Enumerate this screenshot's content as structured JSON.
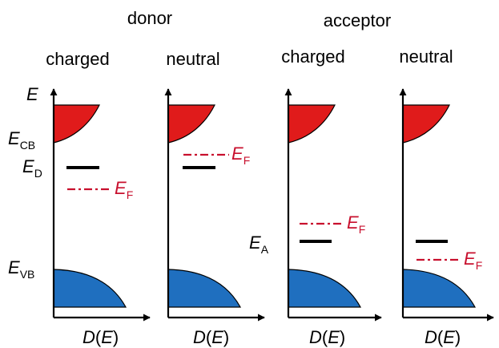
{
  "groups": {
    "donor": "donor",
    "acceptor": "acceptor"
  },
  "columns": {
    "donor_charged": "charged",
    "donor_neutral": "neutral",
    "acceptor_charged": "charged",
    "acceptor_neutral": "neutral"
  },
  "axis": {
    "y_symbol": "E",
    "x_func": "D",
    "x_paren_open": "(",
    "x_arg": "E",
    "x_paren_close": ")"
  },
  "levels": {
    "cb": {
      "symbol": "E",
      "sub": "CB"
    },
    "vb": {
      "symbol": "E",
      "sub": "VB"
    },
    "donor": {
      "symbol": "E",
      "sub": "D"
    },
    "acceptor": {
      "symbol": "E",
      "sub": "A"
    },
    "fermi": {
      "symbol": "E",
      "sub": "F"
    }
  },
  "colors": {
    "conduction_band": "#e01b1b",
    "valence_band": "#1f6fbf",
    "fermi_level": "#c8102e",
    "impurity_level": "#000000"
  }
}
